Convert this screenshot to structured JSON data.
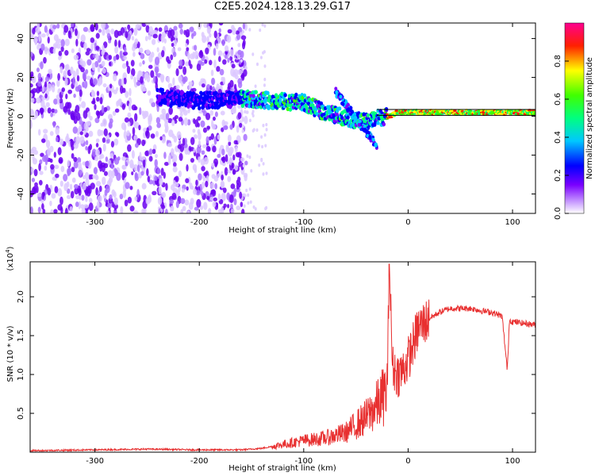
{
  "title": "C2E5.2024.128.13.29.G17",
  "chart_data": [
    {
      "type": "heatmap",
      "xlabel": "Height of straight line (km)",
      "ylabel": "Frequency (Hz)",
      "xlim": [
        -362,
        122
      ],
      "ylim": [
        -50,
        48
      ],
      "xticks": [
        -300,
        -200,
        -100,
        0,
        100
      ],
      "yticks": [
        -40,
        -20,
        0,
        20,
        40
      ],
      "colorbar": {
        "label": "Normalized spectral amplitude",
        "range": [
          0.0,
          1.0
        ],
        "ticks": [
          0.0,
          0.2,
          0.4,
          0.6,
          0.8
        ],
        "tick_labels": [
          "0.0",
          "0.2",
          "0.4",
          "0.6",
          "0.8"
        ],
        "colormap": [
          "#ffffff",
          "#7a00ff",
          "#0000ff",
          "#00ffff",
          "#00ff00",
          "#ffff00",
          "#ff0000",
          "#ff00aa"
        ]
      },
      "ridge": {
        "x": [
          -240,
          -200,
          -160,
          -130,
          -100,
          -80,
          -65,
          -50,
          -40,
          -30,
          -20,
          -10,
          0,
          50,
          100,
          122
        ],
        "y": [
          10,
          8,
          9,
          8,
          7,
          2,
          0,
          -2,
          -3,
          -1,
          0,
          2,
          2,
          2,
          2,
          2
        ]
      }
    },
    {
      "type": "line",
      "xlabel": "Height of straight line (km)",
      "ylabel": "SNR (10 * v/v)",
      "multiplier_label": "(x10",
      "multiplier_exp": "4",
      "multiplier_close": ")",
      "xlim": [
        -362,
        122
      ],
      "ylim": [
        0,
        2.45
      ],
      "xticks": [
        -300,
        -200,
        -100,
        0,
        100
      ],
      "yticks": [
        0.5,
        1.0,
        1.5,
        2.0
      ],
      "ytick_labels": [
        "0.5",
        "1.0",
        "1.5",
        "2.0"
      ],
      "series": [
        {
          "color": "#e83030",
          "x": [
            -362,
            -300,
            -250,
            -200,
            -160,
            -140,
            -120,
            -100,
            -80,
            -60,
            -50,
            -40,
            -30,
            -25,
            -20,
            -18,
            -15,
            -10,
            -5,
            0,
            5,
            10,
            20,
            30,
            40,
            50,
            60,
            70,
            80,
            90,
            95,
            97,
            100,
            110,
            122
          ],
          "y": [
            0.02,
            0.03,
            0.04,
            0.03,
            0.03,
            0.05,
            0.1,
            0.15,
            0.18,
            0.25,
            0.35,
            0.45,
            0.6,
            0.7,
            0.8,
            2.42,
            1.1,
            1.0,
            1.05,
            1.2,
            1.4,
            1.6,
            1.72,
            1.8,
            1.85,
            1.85,
            1.85,
            1.82,
            1.8,
            1.75,
            1.05,
            1.7,
            1.68,
            1.66,
            1.64
          ]
        }
      ]
    }
  ]
}
